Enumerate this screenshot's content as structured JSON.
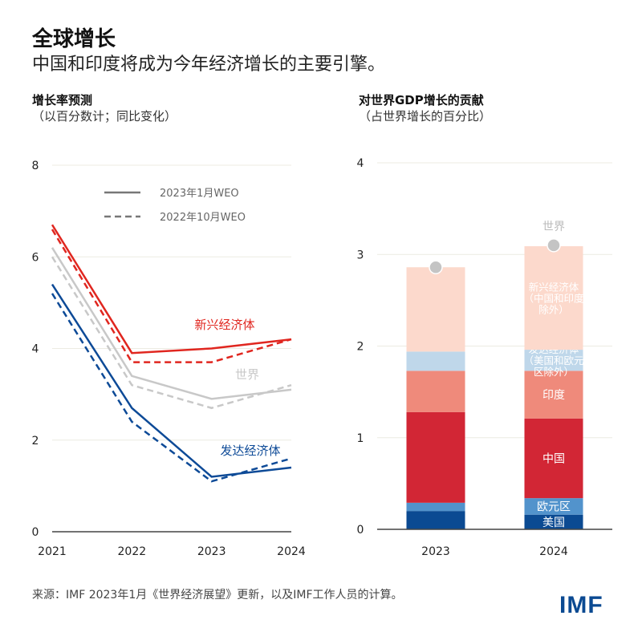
{
  "header": {
    "title": "全球增长",
    "subtitle": "中国和印度将成为今年经济增长的主要引擎。"
  },
  "footer": {
    "source": "来源：IMF 2023年1月《世界经济展望》更新，以及IMF工作人员的计算。",
    "logo": "IMF"
  },
  "chart_data": [
    {
      "type": "line",
      "title": "增长率预测",
      "subtitle": "（以百分数计；同比变化）",
      "x": [
        "2021",
        "2022",
        "2023",
        "2024"
      ],
      "ylim": [
        0,
        8
      ],
      "yticks": [
        "0",
        "2",
        "4",
        "6",
        "8"
      ],
      "grid": true,
      "legend_position": "top",
      "legend": [
        {
          "label": "2023年1月WEO",
          "style": "solid"
        },
        {
          "label": "2022年10月WEO",
          "style": "dashed"
        }
      ],
      "series": [
        {
          "name": "新兴经济体",
          "color": "#e0261f",
          "jan2023": [
            6.7,
            3.9,
            4.0,
            4.2
          ],
          "oct2022": [
            6.6,
            3.7,
            3.7,
            4.2
          ]
        },
        {
          "name": "世界",
          "color": "#c8c8c8",
          "jan2023": [
            6.2,
            3.4,
            2.9,
            3.1
          ],
          "oct2022": [
            6.0,
            3.2,
            2.7,
            3.2
          ]
        },
        {
          "name": "发达经济体",
          "color": "#0d4a97",
          "jan2023": [
            5.4,
            2.7,
            1.2,
            1.4
          ],
          "oct2022": [
            5.2,
            2.4,
            1.1,
            1.6
          ]
        }
      ]
    },
    {
      "type": "bar",
      "stacked": true,
      "title": "对世界GDP增长的贡献",
      "subtitle": "（占世界增长的百分比）",
      "categories": [
        "2023",
        "2024"
      ],
      "ylim": [
        0,
        4
      ],
      "yticks": [
        "0",
        "1",
        "2",
        "3",
        "4"
      ],
      "grid": true,
      "series": [
        {
          "name": "美国",
          "color": "#0b4a92",
          "text_color": "#ffffff",
          "values": [
            0.2,
            0.16
          ]
        },
        {
          "name": "欧元区",
          "color": "#5293cc",
          "text_color": "#ffffff",
          "values": [
            0.09,
            0.18
          ]
        },
        {
          "name": "中国",
          "color": "#d22635",
          "text_color": "#ffffff",
          "values": [
            0.99,
            0.87
          ]
        },
        {
          "name": "印度",
          "color": "#ef8a7b",
          "text_color": "#ffffff",
          "values": [
            0.45,
            0.52
          ]
        },
        {
          "name": "发达经济体（美国和欧元区除外）",
          "label_lines": [
            "发达经济体",
            "（美国和欧元",
            "区除外）"
          ],
          "color": "#bfd7ea",
          "text_color": "#ffffff",
          "values": [
            0.21,
            0.23
          ]
        },
        {
          "name": "新兴经济体（中国和印度除外）",
          "label_lines": [
            "新兴经济体",
            "（中国和印度",
            "除外）"
          ],
          "color": "#fcd9cc",
          "text_color": "#ffffff",
          "values": [
            0.92,
            1.13
          ]
        }
      ],
      "markers": {
        "name": "世界",
        "color": "#c4c4c4",
        "values": [
          2.86,
          3.1
        ]
      }
    }
  ]
}
